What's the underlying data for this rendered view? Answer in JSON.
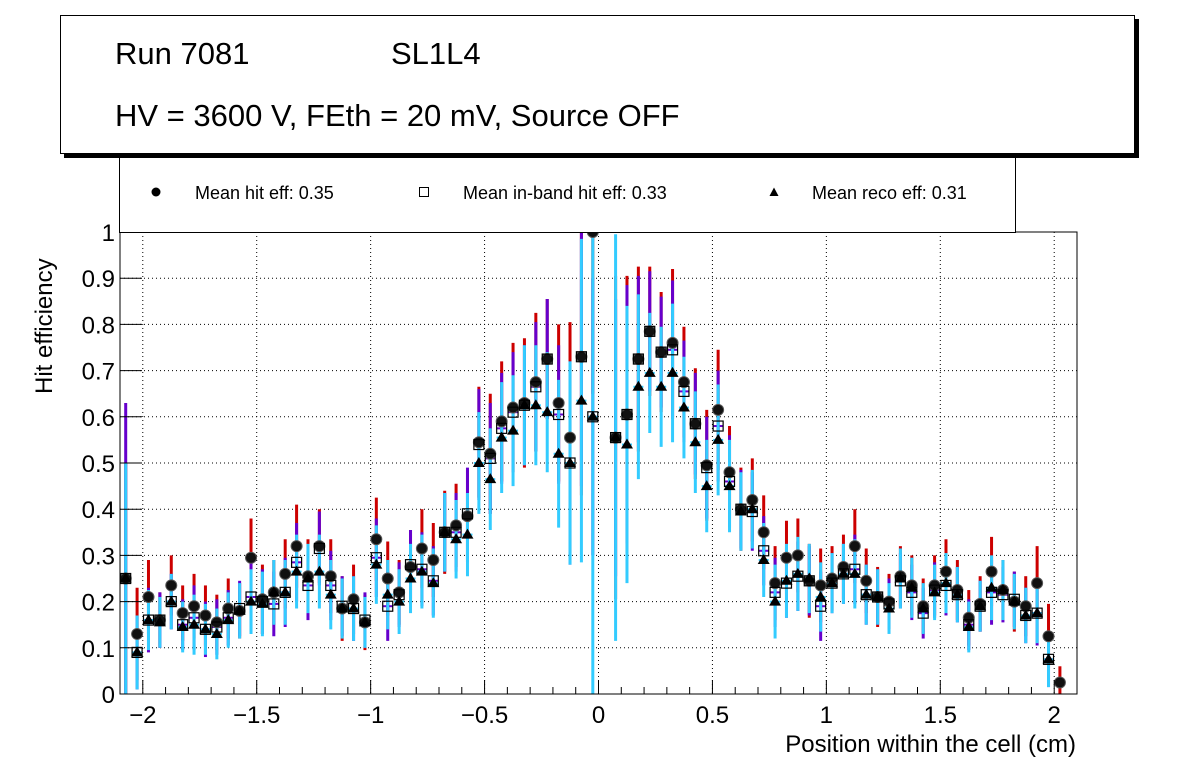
{
  "header": {
    "run": "Run 7081",
    "chamber": "SL1L4",
    "conditions": "HV = 3600 V, FEth = 20 mV, Source OFF"
  },
  "legend": [
    {
      "label": "Mean hit  eff: 0.35",
      "marker": "filled-circle"
    },
    {
      "label": "Mean in-band hit eff: 0.33",
      "marker": "open-square"
    },
    {
      "label": "Mean reco eff: 0.31",
      "marker": "filled-triangle"
    }
  ],
  "colors": {
    "hit_err": "#cc0000",
    "inband_err": "#6600cc",
    "reco_err": "#33ccff",
    "marker": "#000000"
  },
  "chart_data": {
    "type": "scatter",
    "title": "",
    "xlabel": "Position within the cell (cm)",
    "ylabel": "Hit efficiency",
    "xlim": [
      -2.1,
      2.1
    ],
    "ylim": [
      0,
      1
    ],
    "xticks": [
      -2,
      -1.5,
      -1,
      -0.5,
      0,
      0.5,
      1,
      1.5,
      2
    ],
    "xtick_labels": [
      "−2",
      "−1.5",
      "−1",
      "−0.5",
      "0",
      "0.5",
      "1",
      "1.5",
      "2"
    ],
    "yticks": [
      0,
      0.1,
      0.2,
      0.3,
      0.4,
      0.5,
      0.6,
      0.7,
      0.8,
      0.9,
      1
    ],
    "ytick_labels": [
      "0",
      "0.1",
      "0.2",
      "0.3",
      "0.4",
      "0.5",
      "0.6",
      "0.7",
      "0.8",
      "0.9",
      "1"
    ],
    "grid": true,
    "legend_position": "top",
    "x": [
      -2.075,
      -2.025,
      -1.975,
      -1.925,
      -1.875,
      -1.825,
      -1.775,
      -1.725,
      -1.675,
      -1.625,
      -1.575,
      -1.525,
      -1.475,
      -1.425,
      -1.375,
      -1.325,
      -1.275,
      -1.225,
      -1.175,
      -1.125,
      -1.075,
      -1.025,
      -0.975,
      -0.925,
      -0.875,
      -0.825,
      -0.775,
      -0.725,
      -0.675,
      -0.625,
      -0.575,
      -0.525,
      -0.475,
      -0.425,
      -0.375,
      -0.325,
      -0.275,
      -0.225,
      -0.175,
      -0.125,
      -0.075,
      -0.025,
      0.075,
      0.125,
      0.175,
      0.225,
      0.275,
      0.325,
      0.375,
      0.425,
      0.475,
      0.525,
      0.575,
      0.625,
      0.675,
      0.725,
      0.775,
      0.825,
      0.875,
      0.925,
      0.975,
      1.025,
      1.075,
      1.125,
      1.175,
      1.225,
      1.275,
      1.325,
      1.375,
      1.425,
      1.475,
      1.525,
      1.575,
      1.625,
      1.675,
      1.725,
      1.775,
      1.825,
      1.875,
      1.925,
      1.975,
      2.025
    ],
    "series": [
      {
        "name": "Mean hit  eff: 0.35",
        "marker": "filled-circle",
        "values": [
          0.25,
          0.13,
          0.21,
          0.16,
          0.235,
          0.175,
          0.19,
          0.17,
          0.155,
          0.185,
          0.18,
          0.295,
          0.205,
          0.22,
          0.26,
          0.32,
          0.255,
          0.32,
          0.255,
          0.185,
          0.205,
          0.155,
          0.335,
          0.25,
          0.22,
          0.275,
          0.315,
          0.29,
          0.35,
          0.365,
          0.385,
          0.545,
          0.52,
          0.59,
          0.62,
          0.63,
          0.675,
          0.725,
          0.63,
          0.555,
          0.73,
          1.0,
          0.555,
          0.605,
          0.725,
          0.785,
          0.74,
          0.76,
          0.675,
          0.585,
          0.495,
          0.615,
          0.48,
          0.4,
          0.42,
          0.35,
          0.24,
          0.295,
          0.3,
          0.245,
          0.235,
          0.25,
          0.275,
          0.32,
          0.245,
          0.21,
          0.2,
          0.255,
          0.235,
          0.19,
          0.235,
          0.265,
          0.225,
          0.165,
          0.195,
          0.265,
          0.225,
          0.2,
          0.19,
          0.24,
          0.125,
          0.025
        ],
        "err": [
          0.25,
          0.1,
          0.08,
          0.06,
          0.065,
          0.06,
          0.07,
          0.065,
          0.06,
          0.065,
          0.06,
          0.085,
          0.075,
          0.07,
          0.075,
          0.09,
          0.08,
          0.08,
          0.08,
          0.07,
          0.075,
          0.06,
          0.09,
          0.08,
          0.07,
          0.08,
          0.085,
          0.08,
          0.09,
          0.09,
          0.1,
          0.12,
          0.13,
          0.13,
          0.14,
          0.14,
          0.15,
          0.13,
          0.17,
          0.25,
          0.3,
          0.35,
          0.35,
          0.3,
          0.2,
          0.14,
          0.13,
          0.16,
          0.12,
          0.12,
          0.12,
          0.13,
          0.1,
          0.09,
          0.09,
          0.08,
          0.08,
          0.08,
          0.08,
          0.08,
          0.08,
          0.07,
          0.07,
          0.08,
          0.07,
          0.065,
          0.06,
          0.065,
          0.065,
          0.06,
          0.065,
          0.07,
          0.065,
          0.06,
          0.06,
          0.075,
          0.065,
          0.065,
          0.065,
          0.08,
          0.07,
          0.035
        ]
      },
      {
        "name": "Mean in-band hit eff: 0.33",
        "marker": "open-square",
        "values": [
          0.25,
          0.09,
          0.16,
          0.16,
          0.2,
          0.15,
          0.165,
          0.14,
          0.145,
          0.165,
          0.185,
          0.21,
          0.2,
          0.195,
          0.22,
          0.285,
          0.235,
          0.315,
          0.235,
          0.19,
          0.185,
          0.16,
          0.295,
          0.19,
          0.215,
          0.28,
          0.27,
          0.245,
          0.35,
          0.35,
          0.39,
          0.54,
          0.51,
          0.575,
          0.61,
          0.625,
          0.665,
          0.725,
          0.605,
          0.5,
          0.73,
          0.6,
          0.555,
          0.605,
          0.725,
          0.785,
          0.74,
          0.745,
          0.655,
          0.585,
          0.49,
          0.58,
          0.46,
          0.4,
          0.395,
          0.31,
          0.22,
          0.24,
          0.255,
          0.245,
          0.19,
          0.24,
          0.26,
          0.27,
          0.215,
          0.21,
          0.195,
          0.245,
          0.22,
          0.175,
          0.225,
          0.235,
          0.215,
          0.15,
          0.19,
          0.22,
          0.215,
          0.205,
          0.17,
          0.175,
          0.075,
          null
        ],
        "err": [
          0.38,
          0.08,
          0.07,
          0.06,
          0.06,
          0.055,
          0.07,
          0.06,
          0.06,
          0.06,
          0.06,
          0.075,
          0.07,
          0.07,
          0.075,
          0.085,
          0.075,
          0.08,
          0.075,
          0.065,
          0.07,
          0.06,
          0.085,
          0.075,
          0.07,
          0.075,
          0.08,
          0.075,
          0.085,
          0.085,
          0.1,
          0.12,
          0.12,
          0.12,
          0.13,
          0.13,
          0.14,
          0.13,
          0.15,
          0.22,
          0.28,
          0.3,
          0.3,
          0.28,
          0.18,
          0.13,
          0.12,
          0.15,
          0.11,
          0.11,
          0.11,
          0.12,
          0.1,
          0.085,
          0.085,
          0.075,
          0.075,
          0.075,
          0.075,
          0.075,
          0.075,
          0.065,
          0.065,
          0.075,
          0.065,
          0.06,
          0.055,
          0.06,
          0.06,
          0.055,
          0.06,
          0.065,
          0.06,
          0.055,
          0.055,
          0.07,
          0.06,
          0.06,
          0.06,
          0.07,
          0.06,
          0
        ]
      },
      {
        "name": "Mean reco eff: 0.31",
        "marker": "filled-triangle",
        "values": [
          0.25,
          0.09,
          0.16,
          0.155,
          0.2,
          0.145,
          0.15,
          0.14,
          0.13,
          0.16,
          0.18,
          0.2,
          0.195,
          0.22,
          0.22,
          0.265,
          0.25,
          0.265,
          0.215,
          0.185,
          0.185,
          0.155,
          0.28,
          0.215,
          0.2,
          0.25,
          0.265,
          0.24,
          0.35,
          0.335,
          0.345,
          0.5,
          0.465,
          0.555,
          0.57,
          0.625,
          0.625,
          0.61,
          0.52,
          0.5,
          0.635,
          0.6,
          0.555,
          0.54,
          0.665,
          0.695,
          0.665,
          0.695,
          0.62,
          0.545,
          0.45,
          0.55,
          0.45,
          0.395,
          0.4,
          0.29,
          0.2,
          0.245,
          0.26,
          0.25,
          0.21,
          0.24,
          0.26,
          0.26,
          0.215,
          0.21,
          0.185,
          0.25,
          0.23,
          0.185,
          0.22,
          0.24,
          0.215,
          0.145,
          0.19,
          0.23,
          0.225,
          0.2,
          0.17,
          0.175,
          0.075,
          null
        ],
        "err": [
          0.25,
          0.08,
          0.065,
          0.055,
          0.06,
          0.055,
          0.065,
          0.055,
          0.055,
          0.06,
          0.06,
          0.07,
          0.07,
          0.07,
          0.07,
          0.08,
          0.075,
          0.08,
          0.075,
          0.065,
          0.07,
          0.055,
          0.085,
          0.075,
          0.07,
          0.075,
          0.08,
          0.075,
          0.085,
          0.085,
          0.09,
          0.11,
          0.11,
          0.12,
          0.12,
          0.13,
          0.13,
          0.13,
          0.16,
          0.22,
          0.35,
          0.6,
          0.44,
          0.3,
          0.2,
          0.13,
          0.13,
          0.15,
          0.11,
          0.11,
          0.1,
          0.12,
          0.1,
          0.085,
          0.085,
          0.08,
          0.08,
          0.08,
          0.08,
          0.075,
          0.075,
          0.065,
          0.065,
          0.075,
          0.065,
          0.06,
          0.055,
          0.065,
          0.065,
          0.055,
          0.06,
          0.065,
          0.06,
          0.055,
          0.055,
          0.07,
          0.065,
          0.06,
          0.06,
          0.065,
          0.06,
          0
        ]
      }
    ]
  }
}
